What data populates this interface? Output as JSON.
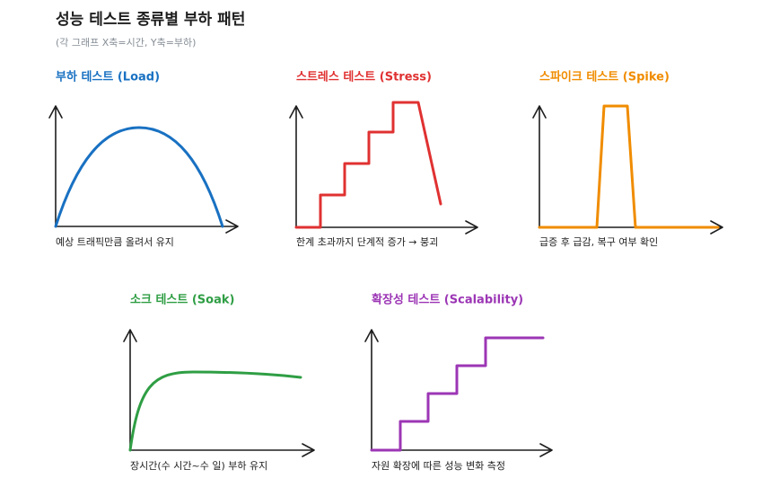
{
  "header": {
    "title": "성능 테스트 종류별 부하 패턴",
    "subtitle": "(각 그래프 X축=시간, Y축=부하)"
  },
  "panels": [
    {
      "title": "부하 테스트 (Load)",
      "caption": "예상 트래픽만큼 올려서 유지"
    },
    {
      "title": "스트레스 테스트 (Stress)",
      "caption": "한계 초과까지 단계적 증가 → 붕괴"
    },
    {
      "title": "스파이크 테스트 (Spike)",
      "caption": "급증 후 급감, 복구 여부 확인"
    },
    {
      "title": "소크 테스트 (Soak)",
      "caption": "장시간(수 시간~수 일) 부하 유지"
    },
    {
      "title": "확장성 테스트 (Scalability)",
      "caption": "자원 확장에 따른 성능 변화 측정"
    }
  ]
}
